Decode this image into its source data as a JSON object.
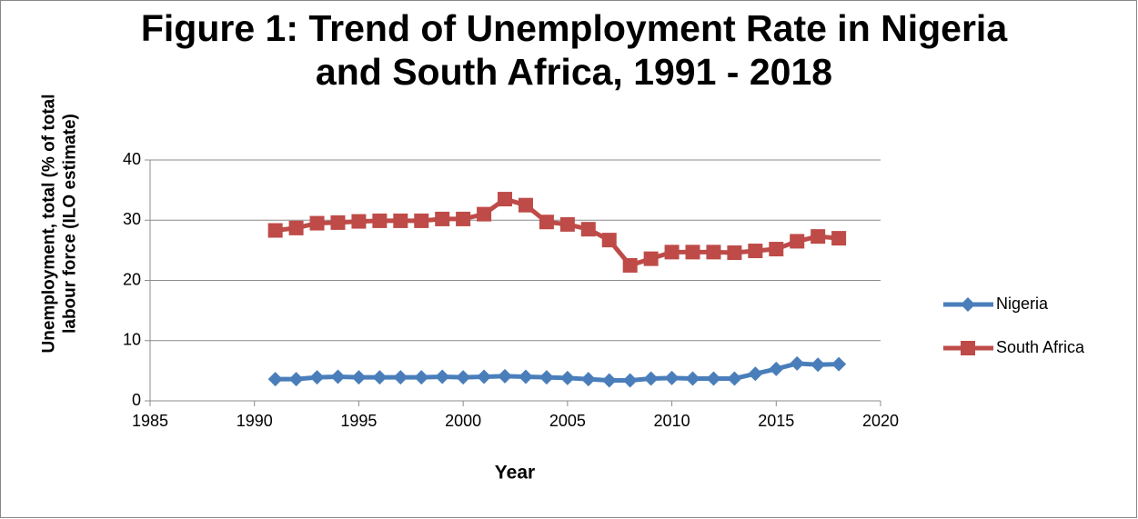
{
  "chart_data": {
    "type": "line",
    "title": "Figure 1: Trend of Unemployment Rate in Nigeria and South Africa, 1991 - 2018",
    "x_label": "Year",
    "y_label": "Unemployment, total (% of total labour force (ILO estimate)",
    "x": [
      1991,
      1992,
      1993,
      1994,
      1995,
      1996,
      1997,
      1998,
      1999,
      2000,
      2001,
      2002,
      2003,
      2004,
      2005,
      2006,
      2007,
      2008,
      2009,
      2010,
      2011,
      2012,
      2013,
      2014,
      2015,
      2016,
      2017,
      2018
    ],
    "series": [
      {
        "name": "Nigeria",
        "color": "#4a7ebb",
        "marker": "diamond",
        "values": [
          3.6,
          3.6,
          3.9,
          4.0,
          3.9,
          3.9,
          3.9,
          3.9,
          4.0,
          3.9,
          4.0,
          4.1,
          4.0,
          3.9,
          3.8,
          3.6,
          3.4,
          3.4,
          3.7,
          3.8,
          3.7,
          3.7,
          3.7,
          4.5,
          5.3,
          6.2,
          6.0,
          6.1
        ]
      },
      {
        "name": "South Africa",
        "color": "#be4b48",
        "marker": "square",
        "values": [
          28.3,
          28.7,
          29.5,
          29.6,
          29.8,
          29.9,
          29.9,
          29.9,
          30.2,
          30.2,
          31.0,
          33.5,
          32.5,
          29.7,
          29.3,
          28.5,
          26.7,
          22.5,
          23.6,
          24.7,
          24.7,
          24.7,
          24.6,
          24.9,
          25.2,
          26.5,
          27.3,
          27.0
        ]
      }
    ],
    "xlim": [
      1985,
      2020
    ],
    "xticks": [
      1985,
      1990,
      1995,
      2000,
      2005,
      2010,
      2015,
      2020
    ],
    "ylim": [
      0,
      40
    ],
    "yticks": [
      0,
      10,
      20,
      30,
      40
    ],
    "grid": true,
    "legend": "right"
  }
}
